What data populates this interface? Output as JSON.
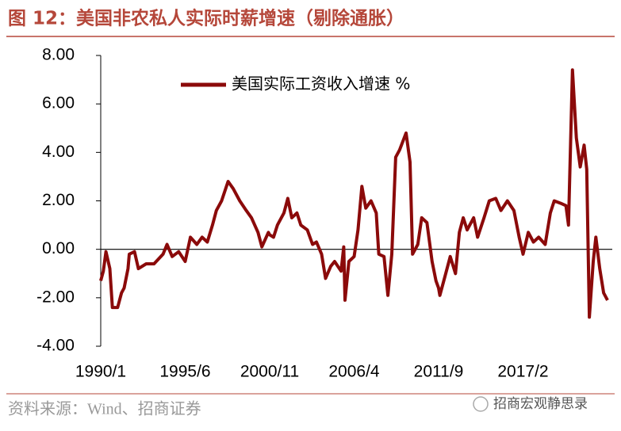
{
  "chart_data": {
    "type": "line",
    "title": "图 12：美国非农私人实际时薪增速（剔除通胀）",
    "source": "资料来源：Wind、招商证券",
    "watermark": "招商宏观静思录",
    "x": [
      "1990/1",
      "1990/3",
      "1990/5",
      "1990/8",
      "1990/10",
      "1991/2",
      "1991/5",
      "1991/7",
      "1991/10",
      "1991/11",
      "1992/3",
      "1992/6",
      "1992/12",
      "1993/6",
      "1994/1",
      "1994/4",
      "1994/8",
      "1995/1",
      "1995/6",
      "1995/10",
      "1996/3",
      "1996/7",
      "1996/11",
      "1997/3",
      "1997/6",
      "1997/10",
      "1998/3",
      "1998/7",
      "1998/12",
      "1999/5",
      "1999/9",
      "2000/2",
      "2000/5",
      "2000/10",
      "2000/11",
      "2001/2",
      "2001/5",
      "2001/10",
      "2002/1",
      "2002/4",
      "2002/8",
      "2002/11",
      "2003/4",
      "2003/8",
      "2003/11",
      "2004/3",
      "2004/6",
      "2004/10",
      "2005/1",
      "2005/6",
      "2005/8",
      "2005/9",
      "2005/12",
      "2006/4",
      "2006/7",
      "2006/10",
      "2007/1",
      "2007/5",
      "2007/9",
      "2007/11",
      "2008/3",
      "2008/6",
      "2008/9",
      "2008/12",
      "2009/3",
      "2009/8",
      "2009/11",
      "2010/1",
      "2010/5",
      "2010/8",
      "2010/12",
      "2011/4",
      "2011/7",
      "2011/9",
      "2011/10",
      "2012/2",
      "2012/6",
      "2012/10",
      "2013/1",
      "2013/4",
      "2013/7",
      "2013/12",
      "2014/3",
      "2014/8",
      "2014/12",
      "2015/5",
      "2015/9",
      "2016/2",
      "2016/7",
      "2016/11",
      "2017/2",
      "2017/6",
      "2017/10",
      "2018/2",
      "2018/7",
      "2018/11",
      "2019/2",
      "2019/7",
      "2019/11",
      "2020/1",
      "2020/4",
      "2020/7",
      "2020/10",
      "2021/1",
      "2021/3",
      "2021/5",
      "2021/8",
      "2021/10",
      "2022/1",
      "2022/4",
      "2022/7"
    ],
    "series": [
      {
        "name": "美国实际工资收入增速 %",
        "color": "#8b0a0a",
        "values": [
          -1.3,
          -0.9,
          -0.1,
          -0.8,
          -2.4,
          -2.4,
          -1.8,
          -1.6,
          -0.8,
          -0.2,
          -0.1,
          -0.8,
          -0.6,
          -0.6,
          -0.2,
          0.2,
          -0.3,
          -0.1,
          -0.5,
          0.5,
          0.2,
          0.5,
          0.3,
          1.0,
          1.6,
          2.0,
          2.8,
          2.5,
          2.0,
          1.6,
          1.3,
          0.7,
          0.1,
          0.7,
          0.6,
          0.5,
          1.0,
          1.5,
          2.1,
          1.3,
          1.5,
          1.0,
          0.8,
          0.2,
          0.3,
          -0.2,
          -1.2,
          -0.7,
          -0.5,
          -0.9,
          0.1,
          -2.1,
          -0.5,
          -0.3,
          0.8,
          2.6,
          1.7,
          2.0,
          1.5,
          -0.2,
          -0.3,
          -1.9,
          -0.2,
          3.8,
          4.1,
          4.8,
          3.6,
          -0.2,
          0.2,
          1.3,
          1.1,
          -0.5,
          -1.3,
          -1.6,
          -1.9,
          -1.1,
          -0.3,
          -1.0,
          0.7,
          1.3,
          0.8,
          1.3,
          0.5,
          1.3,
          2.0,
          2.1,
          1.6,
          2.0,
          1.6,
          0.5,
          -0.2,
          0.7,
          0.3,
          0.5,
          0.2,
          1.5,
          2.0,
          1.9,
          1.8,
          1.0,
          7.4,
          4.6,
          3.4,
          4.3,
          3.3,
          -2.8,
          -0.5,
          0.5,
          -0.8,
          -1.8,
          -2.1
        ]
      }
    ],
    "xticks": [
      "1990/1",
      "1995/6",
      "2000/11",
      "2006/4",
      "2011/9",
      "2017/2"
    ],
    "ylim": [
      -4,
      8
    ],
    "yticks": [
      {
        "value": -4,
        "label": "-4.00"
      },
      {
        "value": -2,
        "label": "-2.00"
      },
      {
        "value": 0,
        "label": "0.00"
      },
      {
        "value": 2,
        "label": "2.00"
      },
      {
        "value": 4,
        "label": "4.00"
      },
      {
        "value": 6,
        "label": "6.00"
      },
      {
        "value": 8,
        "label": "8.00"
      }
    ],
    "legend": "top"
  }
}
